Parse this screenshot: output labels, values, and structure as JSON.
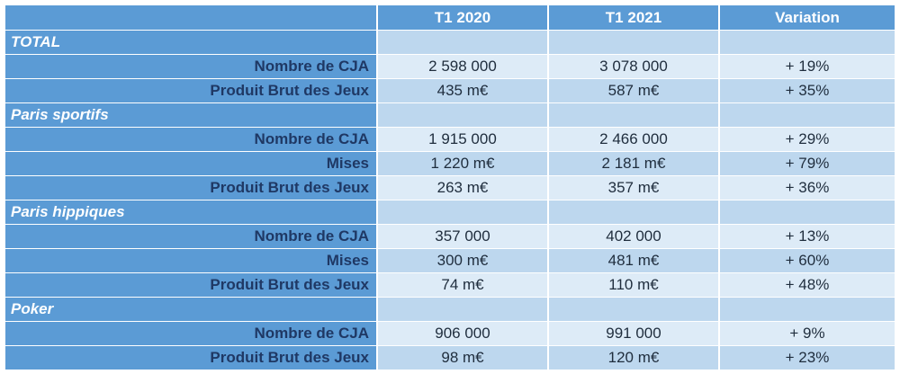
{
  "chart_data": {
    "type": "table",
    "columns": [
      "",
      "T1 2020",
      "T1 2021",
      "Variation"
    ],
    "sections": [
      {
        "name": "TOTAL",
        "rows": [
          {
            "label": "Nombre de CJA",
            "t1_2020": "2 598 000",
            "t1_2021": "3 078 000",
            "variation": "+ 19%"
          },
          {
            "label": "Produit Brut des Jeux",
            "t1_2020": "435 m€",
            "t1_2021": "587 m€",
            "variation": "+ 35%"
          }
        ]
      },
      {
        "name": "Paris sportifs",
        "rows": [
          {
            "label": "Nombre de CJA",
            "t1_2020": "1 915 000",
            "t1_2021": "2 466 000",
            "variation": "+ 29%"
          },
          {
            "label": "Mises",
            "t1_2020": "1 220 m€",
            "t1_2021": "2 181 m€",
            "variation": "+ 79%"
          },
          {
            "label": "Produit Brut des Jeux",
            "t1_2020": "263 m€",
            "t1_2021": "357 m€",
            "variation": "+ 36%"
          }
        ]
      },
      {
        "name": "Paris hippiques",
        "rows": [
          {
            "label": "Nombre de CJA",
            "t1_2020": "357 000",
            "t1_2021": "402 000",
            "variation": "+ 13%"
          },
          {
            "label": "Mises",
            "t1_2020": "300 m€",
            "t1_2021": "481 m€",
            "variation": "+ 60%"
          },
          {
            "label": "Produit Brut des Jeux",
            "t1_2020": "74 m€",
            "t1_2021": "110 m€",
            "variation": "+ 48%"
          }
        ]
      },
      {
        "name": "Poker",
        "rows": [
          {
            "label": "Nombre de CJA",
            "t1_2020": "906 000",
            "t1_2021": "991 000",
            "variation": "+ 9%"
          },
          {
            "label": "Produit Brut des Jeux",
            "t1_2020": "98 m€",
            "t1_2021": "120 m€",
            "variation": "+ 23%"
          }
        ]
      }
    ]
  },
  "colors": {
    "header_bg": "#5b9bd5",
    "label_text": "#1f3864",
    "cell_light": "#ddebf7",
    "cell_mid": "#bdd7ee"
  }
}
